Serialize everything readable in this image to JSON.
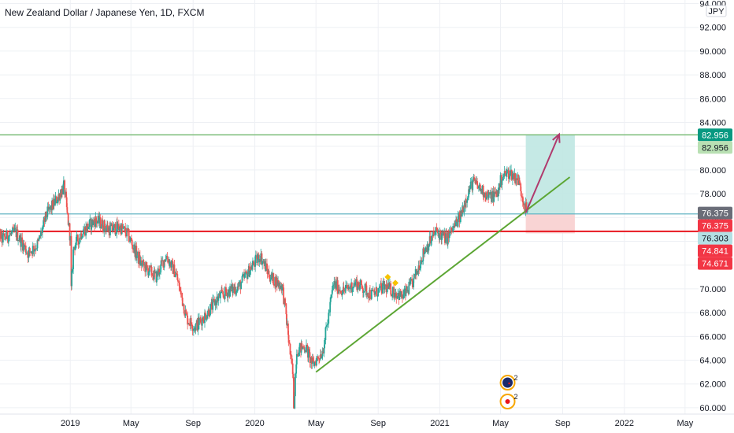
{
  "chart_data": {
    "type": "candlestick",
    "title": "New Zealand Dollar / Japanese Yen, 1D, FXCM",
    "currency": "JPY",
    "colors": {
      "up": "#26a69a",
      "down": "#ef5350",
      "trendline": "#5ca634",
      "support": "#e8161e",
      "target_line": "#7dbe7a",
      "entry_line": "#5fb3c3",
      "arrow": "#b03a6d",
      "profit_zone": "#bfe7e2",
      "stop_zone": "#f9d2d2",
      "grid": "#eef0f4"
    },
    "y_axis": {
      "range": [
        59.2,
        94.3
      ],
      "ticks": [
        "60.000",
        "62.000",
        "64.000",
        "66.000",
        "68.000",
        "70.000",
        "72.000",
        "74.000",
        "76.000",
        "78.000",
        "80.000",
        "82.000",
        "84.000",
        "86.000",
        "88.000",
        "90.000",
        "92.000",
        "94.000"
      ]
    },
    "x_axis": {
      "range": [
        "2018-08-01",
        "2022-07-01"
      ],
      "ticks": [
        {
          "label": "2019",
          "date": "2019-01-01"
        },
        {
          "label": "May",
          "date": "2019-05-01"
        },
        {
          "label": "Sep",
          "date": "2019-09-01"
        },
        {
          "label": "2020",
          "date": "2020-01-01"
        },
        {
          "label": "May",
          "date": "2020-05-01"
        },
        {
          "label": "Sep",
          "date": "2020-09-01"
        },
        {
          "label": "2021",
          "date": "2021-01-01"
        },
        {
          "label": "May",
          "date": "2021-05-01"
        },
        {
          "label": "Sep",
          "date": "2021-09-01"
        },
        {
          "label": "2022",
          "date": "2022-01-01"
        },
        {
          "label": "May",
          "date": "2022-05-01"
        }
      ]
    },
    "price_path": [
      [
        "2018-08-01",
        75.5
      ],
      [
        "2018-08-20",
        74.2
      ],
      [
        "2018-09-15",
        74.8
      ],
      [
        "2018-10-10",
        73.0
      ],
      [
        "2018-10-30",
        73.8
      ],
      [
        "2018-11-15",
        76.2
      ],
      [
        "2018-12-05",
        77.5
      ],
      [
        "2018-12-20",
        78.6
      ],
      [
        "2019-01-02",
        74.0
      ],
      [
        "2019-01-03",
        69.8
      ],
      [
        "2019-01-08",
        73.5
      ],
      [
        "2019-01-25",
        74.8
      ],
      [
        "2019-02-20",
        75.8
      ],
      [
        "2019-03-20",
        75.0
      ],
      [
        "2019-04-10",
        75.2
      ],
      [
        "2019-04-25",
        74.6
      ],
      [
        "2019-05-20",
        72.2
      ],
      [
        "2019-06-20",
        71.0
      ],
      [
        "2019-07-10",
        72.8
      ],
      [
        "2019-07-30",
        71.2
      ],
      [
        "2019-08-20",
        67.5
      ],
      [
        "2019-09-05",
        66.8
      ],
      [
        "2019-09-30",
        68.0
      ],
      [
        "2019-10-20",
        69.2
      ],
      [
        "2019-11-10",
        69.8
      ],
      [
        "2019-12-01",
        70.2
      ],
      [
        "2019-12-25",
        71.8
      ],
      [
        "2020-01-12",
        72.8
      ],
      [
        "2020-02-01",
        71.0
      ],
      [
        "2020-02-25",
        70.2
      ],
      [
        "2020-03-08",
        66.0
      ],
      [
        "2020-03-18",
        62.0
      ],
      [
        "2020-03-19",
        60.2
      ],
      [
        "2020-03-24",
        64.8
      ],
      [
        "2020-04-10",
        65.2
      ],
      [
        "2020-04-25",
        63.6
      ],
      [
        "2020-05-15",
        64.8
      ],
      [
        "2020-06-05",
        70.4
      ],
      [
        "2020-06-25",
        69.8
      ],
      [
        "2020-07-20",
        70.5
      ],
      [
        "2020-08-20",
        69.5
      ],
      [
        "2020-09-15",
        70.2
      ],
      [
        "2020-10-01",
        69.8
      ],
      [
        "2020-10-20",
        69.3
      ],
      [
        "2020-11-10",
        70.6
      ],
      [
        "2020-12-01",
        73.2
      ],
      [
        "2020-12-25",
        74.8
      ],
      [
        "2021-01-15",
        74.2
      ],
      [
        "2021-02-10",
        76.0
      ],
      [
        "2021-02-25",
        78.0
      ],
      [
        "2021-03-08",
        79.0
      ],
      [
        "2021-03-25",
        78.3
      ],
      [
        "2021-04-10",
        77.7
      ],
      [
        "2021-04-25",
        78.0
      ],
      [
        "2021-05-05",
        79.5
      ],
      [
        "2021-05-20",
        79.8
      ],
      [
        "2021-06-05",
        79.2
      ],
      [
        "2021-06-20",
        76.8
      ],
      [
        "2021-06-25",
        76.4
      ]
    ],
    "drawings": {
      "resistance_target": 82.956,
      "entry_level": 76.303,
      "support_level": 74.841,
      "trendline": {
        "from": [
          "2020-05-01",
          63.0
        ],
        "to": [
          "2021-09-15",
          79.4
        ]
      },
      "position": {
        "start": "2021-06-20",
        "end": "2021-09-25",
        "top": 82.956,
        "entry": 76.303,
        "bottom": 74.671
      },
      "arrow": {
        "from": [
          "2021-06-20",
          76.4
        ],
        "to": [
          "2021-08-25",
          83.0
        ]
      }
    },
    "price_labels": [
      {
        "text": "82.956",
        "value": 82.956,
        "bg": "#089981",
        "fg": "#ffffff"
      },
      {
        "text": "82.956",
        "value": 82.956,
        "bg": "#b9e0b3",
        "fg": "#131722"
      },
      {
        "text": "76.375",
        "value": 76.375,
        "bg": "#6a6d78",
        "fg": "#ffffff"
      },
      {
        "text": "76.375",
        "value": 76.375,
        "bg": "#f23645",
        "fg": "#ffffff"
      },
      {
        "text": "76.303",
        "value": 76.303,
        "bg": "#b4e0e4",
        "fg": "#131722"
      },
      {
        "text": "74.841",
        "value": 74.841,
        "bg": "#f23645",
        "fg": "#ffffff"
      },
      {
        "text": "74.671",
        "value": 74.671,
        "bg": "#f23645",
        "fg": "#ffffff"
      }
    ],
    "markers": [
      {
        "icon": "nz-flag-icon",
        "count": "2",
        "date": "2021-05-15",
        "row": 0
      },
      {
        "icon": "japan-flag-icon",
        "count": "2",
        "date": "2021-05-15",
        "row": 1
      }
    ],
    "annotations": [
      {
        "icon": "diamond-marker-icon",
        "date": "2020-09-20",
        "value": 71.0
      },
      {
        "icon": "diamond-marker-icon",
        "date": "2020-10-05",
        "value": 70.5
      }
    ]
  }
}
